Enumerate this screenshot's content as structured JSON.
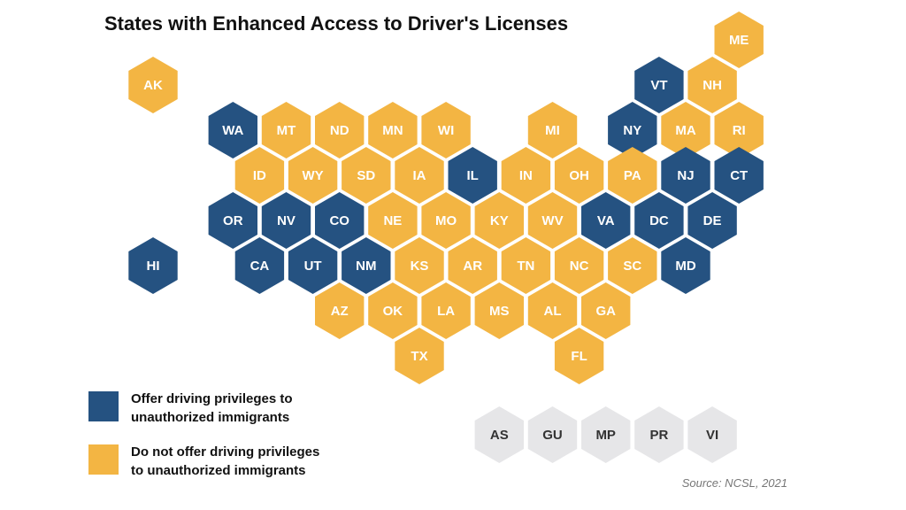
{
  "title": "States with Enhanced Access to Driver's Licenses",
  "colors": {
    "offer": "#255281",
    "not_offer": "#F3B543",
    "territory": "#E6E6E8"
  },
  "states": [
    {
      "abbr": "ME",
      "status": "not_offer",
      "col": 11,
      "row": 0
    },
    {
      "abbr": "AK",
      "status": "not_offer",
      "col": 0,
      "row": 1
    },
    {
      "abbr": "VT",
      "status": "offer",
      "col": 9.5,
      "row": 1
    },
    {
      "abbr": "NH",
      "status": "not_offer",
      "col": 10.5,
      "row": 1
    },
    {
      "abbr": "WA",
      "status": "offer",
      "col": 1.5,
      "row": 2
    },
    {
      "abbr": "MT",
      "status": "not_offer",
      "col": 2.5,
      "row": 2
    },
    {
      "abbr": "ND",
      "status": "not_offer",
      "col": 3.5,
      "row": 2
    },
    {
      "abbr": "MN",
      "status": "not_offer",
      "col": 4.5,
      "row": 2
    },
    {
      "abbr": "WI",
      "status": "not_offer",
      "col": 5.5,
      "row": 2
    },
    {
      "abbr": "MI",
      "status": "not_offer",
      "col": 7.5,
      "row": 2
    },
    {
      "abbr": "NY",
      "status": "offer",
      "col": 9,
      "row": 2
    },
    {
      "abbr": "MA",
      "status": "not_offer",
      "col": 10,
      "row": 2
    },
    {
      "abbr": "RI",
      "status": "not_offer",
      "col": 11,
      "row": 2
    },
    {
      "abbr": "ID",
      "status": "not_offer",
      "col": 2,
      "row": 3
    },
    {
      "abbr": "WY",
      "status": "not_offer",
      "col": 3,
      "row": 3
    },
    {
      "abbr": "SD",
      "status": "not_offer",
      "col": 4,
      "row": 3
    },
    {
      "abbr": "IA",
      "status": "not_offer",
      "col": 5,
      "row": 3
    },
    {
      "abbr": "IL",
      "status": "offer",
      "col": 6,
      "row": 3
    },
    {
      "abbr": "IN",
      "status": "not_offer",
      "col": 7,
      "row": 3
    },
    {
      "abbr": "OH",
      "status": "not_offer",
      "col": 8,
      "row": 3
    },
    {
      "abbr": "PA",
      "status": "not_offer",
      "col": 9,
      "row": 3
    },
    {
      "abbr": "NJ",
      "status": "offer",
      "col": 10,
      "row": 3
    },
    {
      "abbr": "CT",
      "status": "offer",
      "col": 11,
      "row": 3
    },
    {
      "abbr": "OR",
      "status": "offer",
      "col": 1.5,
      "row": 4
    },
    {
      "abbr": "NV",
      "status": "offer",
      "col": 2.5,
      "row": 4
    },
    {
      "abbr": "CO",
      "status": "offer",
      "col": 3.5,
      "row": 4
    },
    {
      "abbr": "NE",
      "status": "not_offer",
      "col": 4.5,
      "row": 4
    },
    {
      "abbr": "MO",
      "status": "not_offer",
      "col": 5.5,
      "row": 4
    },
    {
      "abbr": "KY",
      "status": "not_offer",
      "col": 6.5,
      "row": 4
    },
    {
      "abbr": "WV",
      "status": "not_offer",
      "col": 7.5,
      "row": 4
    },
    {
      "abbr": "VA",
      "status": "offer",
      "col": 8.5,
      "row": 4
    },
    {
      "abbr": "DC",
      "status": "offer",
      "col": 9.5,
      "row": 4
    },
    {
      "abbr": "DE",
      "status": "offer",
      "col": 10.5,
      "row": 4
    },
    {
      "abbr": "HI",
      "status": "offer",
      "col": 0,
      "row": 5
    },
    {
      "abbr": "CA",
      "status": "offer",
      "col": 2,
      "row": 5
    },
    {
      "abbr": "UT",
      "status": "offer",
      "col": 3,
      "row": 5
    },
    {
      "abbr": "NM",
      "status": "offer",
      "col": 4,
      "row": 5
    },
    {
      "abbr": "KS",
      "status": "not_offer",
      "col": 5,
      "row": 5
    },
    {
      "abbr": "AR",
      "status": "not_offer",
      "col": 6,
      "row": 5
    },
    {
      "abbr": "TN",
      "status": "not_offer",
      "col": 7,
      "row": 5
    },
    {
      "abbr": "NC",
      "status": "not_offer",
      "col": 8,
      "row": 5
    },
    {
      "abbr": "SC",
      "status": "not_offer",
      "col": 9,
      "row": 5
    },
    {
      "abbr": "MD",
      "status": "offer",
      "col": 10,
      "row": 5
    },
    {
      "abbr": "AZ",
      "status": "not_offer",
      "col": 3.5,
      "row": 6
    },
    {
      "abbr": "OK",
      "status": "not_offer",
      "col": 4.5,
      "row": 6
    },
    {
      "abbr": "LA",
      "status": "not_offer",
      "col": 5.5,
      "row": 6
    },
    {
      "abbr": "MS",
      "status": "not_offer",
      "col": 6.5,
      "row": 6
    },
    {
      "abbr": "AL",
      "status": "not_offer",
      "col": 7.5,
      "row": 6
    },
    {
      "abbr": "GA",
      "status": "not_offer",
      "col": 8.5,
      "row": 6
    },
    {
      "abbr": "TX",
      "status": "not_offer",
      "col": 5,
      "row": 7
    },
    {
      "abbr": "FL",
      "status": "not_offer",
      "col": 8,
      "row": 7
    }
  ],
  "territories": [
    {
      "abbr": "AS",
      "col": 6.5
    },
    {
      "abbr": "GU",
      "col": 7.5
    },
    {
      "abbr": "MP",
      "col": 8.5
    },
    {
      "abbr": "PR",
      "col": 9.5
    },
    {
      "abbr": "VI",
      "col": 10.5
    }
  ],
  "legend": [
    {
      "key": "offer",
      "line1": "Offer driving privileges to",
      "line2": "unauthorized immigrants"
    },
    {
      "key": "not_offer",
      "line1": "Do not offer driving privileges",
      "line2": "to unauthorized immigrants"
    }
  ],
  "source": "Source: NCSL, 2021"
}
